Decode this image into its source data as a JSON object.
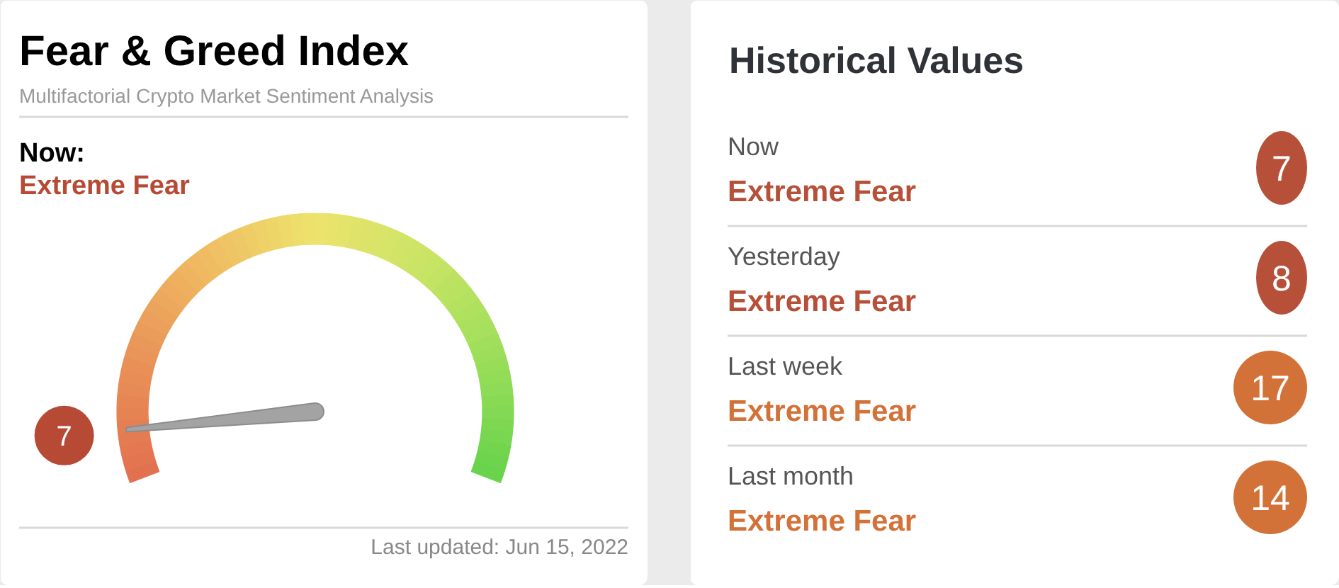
{
  "chart_data": [
    {
      "type": "other",
      "title": "Fear & Greed Index",
      "subtitle": "Multifactorial Crypto Market Sentiment Analysis",
      "annotations": [
        "Now:",
        "Extreme Fear",
        "Last updated: Jun 15, 2022"
      ],
      "values": [
        7
      ],
      "value_labels": [
        "7"
      ],
      "colors": [
        "#b64a35"
      ]
    },
    {
      "type": "other",
      "title": "Historical Values",
      "annotations": [
        "Now",
        "Extreme Fear",
        "Yesterday",
        "Extreme Fear",
        "Last week",
        "Extreme Fear",
        "Last month",
        "Extreme Fear"
      ],
      "values": [
        7,
        8,
        17,
        14
      ],
      "colors": [
        "#b65039",
        "#b65039",
        "#d27239",
        "#d27239"
      ],
      "data_labels": true
    }
  ]
}
